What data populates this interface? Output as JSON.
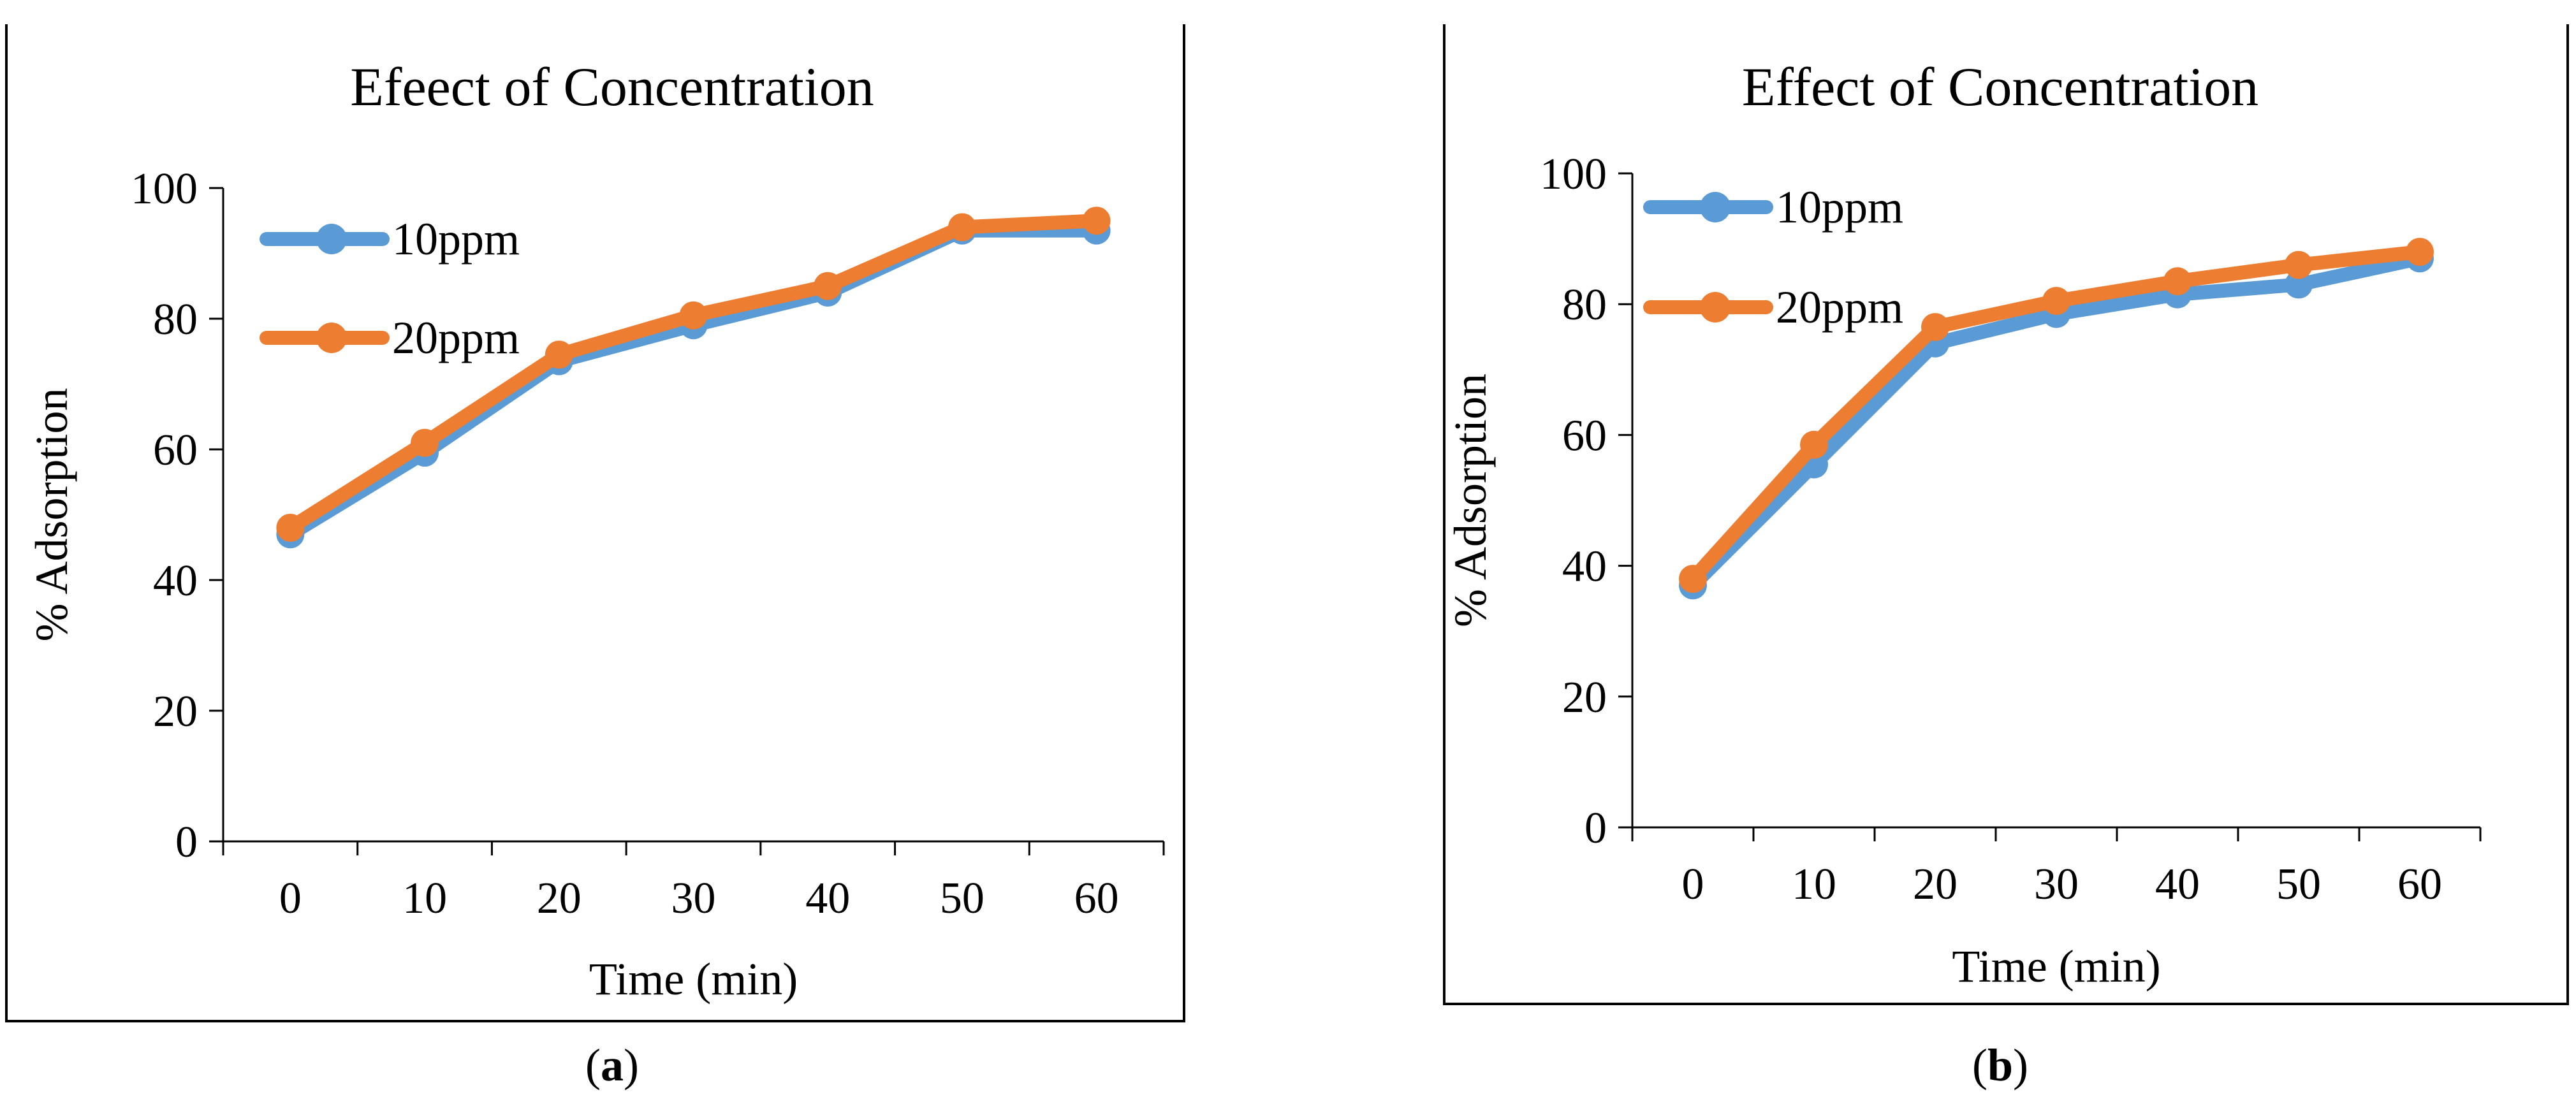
{
  "chart_data": [
    {
      "type": "line",
      "title": "Efeect of Concentration",
      "xlabel": "Time (min)",
      "ylabel": "% Adsorption",
      "x": [
        0,
        10,
        20,
        30,
        40,
        50,
        60
      ],
      "ylim": [
        0,
        100
      ],
      "yticks": [
        0,
        20,
        40,
        60,
        80,
        100
      ],
      "grid": false,
      "legend_position": "top-left",
      "caption_letter": "a",
      "series": [
        {
          "name": "10ppm",
          "color": "#5b9bd5",
          "values": [
            47,
            59.5,
            73.5,
            79,
            84,
            93.5,
            93.5
          ]
        },
        {
          "name": "20ppm",
          "color": "#ed7d31",
          "values": [
            48,
            61,
            74.5,
            80.5,
            85,
            94,
            95
          ]
        }
      ]
    },
    {
      "type": "line",
      "title": "Effect of Concentration",
      "xlabel": "Time (min)",
      "ylabel": "% Adsorption",
      "x": [
        0,
        10,
        20,
        30,
        40,
        50,
        60
      ],
      "ylim": [
        0,
        100
      ],
      "yticks": [
        0,
        20,
        40,
        60,
        80,
        100
      ],
      "grid": false,
      "legend_position": "top-left",
      "caption_letter": "b",
      "series": [
        {
          "name": "10ppm",
          "color": "#5b9bd5",
          "values": [
            37,
            55.5,
            74,
            78.5,
            81.5,
            83,
            87
          ]
        },
        {
          "name": "20ppm",
          "color": "#ed7d31",
          "values": [
            38,
            58.5,
            76.5,
            80.5,
            83.5,
            86,
            88
          ]
        }
      ]
    }
  ]
}
